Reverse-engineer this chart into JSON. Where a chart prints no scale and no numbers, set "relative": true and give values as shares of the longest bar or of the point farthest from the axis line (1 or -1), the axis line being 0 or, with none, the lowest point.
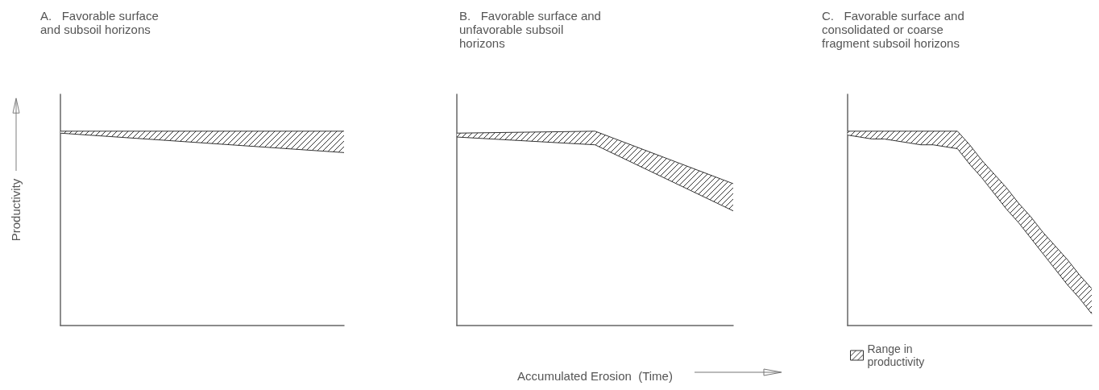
{
  "chart_data": [
    {
      "type": "area",
      "title": "A.   Favorable surface and subsoil horizons",
      "ylabel": "Productivity",
      "relative": true,
      "grid": false,
      "legend": false,
      "categories": [
        null,
        null,
        null
      ],
      "series": [
        {
          "type": "line",
          "color": "#333333",
          "values": [
            0.99,
            0.94,
            0.89
          ]
        },
        {
          "color": "#333333",
          "values": [
            1.0,
            1.0,
            1.0
          ]
        }
      ]
    },
    {
      "type": "area",
      "title": "B.   Favorable surface and unfavorable subsoil horizons",
      "xlabel": "Accumulated Erosion  (Time)",
      "relative": true,
      "grid": false,
      "legend": false,
      "categories": [
        null,
        null,
        null
      ],
      "series": [
        {
          "type": "line",
          "color": "#333333",
          "values": [
            0.97,
            0.93,
            0.59
          ]
        },
        {
          "color": "#333333",
          "values": [
            0.99,
            1.0,
            0.73
          ]
        }
      ]
    },
    {
      "type": "area",
      "title": "C.   Favorable surface and consolidated or coarse fragment subsoil horizons",
      "relative": true,
      "grid": false,
      "legend": "bottom left",
      "categories": [
        null,
        null,
        null,
        null,
        null,
        null,
        null,
        null,
        null,
        null,
        null,
        null,
        null,
        null,
        null,
        null,
        null,
        null,
        null,
        null,
        null
      ],
      "series": [
        {
          "type": "line",
          "color": "#333333",
          "values": [
            0.98,
            0.97,
            0.96,
            0.96,
            0.95,
            0.94,
            0.93,
            0.93,
            0.92,
            0.91,
            0.83,
            0.76,
            0.68,
            0.6,
            0.53,
            0.45,
            0.37,
            0.29,
            0.21,
            0.14,
            0.06
          ]
        },
        {
          "name": "Range in productivity",
          "color": "#333333",
          "values": [
            1.0,
            1.0,
            1.0,
            1.0,
            1.0,
            1.0,
            1.0,
            1.0,
            1.0,
            1.0,
            0.93,
            0.85,
            0.78,
            0.71,
            0.63,
            0.56,
            0.48,
            0.41,
            0.34,
            0.26,
            0.19
          ]
        }
      ]
    }
  ]
}
